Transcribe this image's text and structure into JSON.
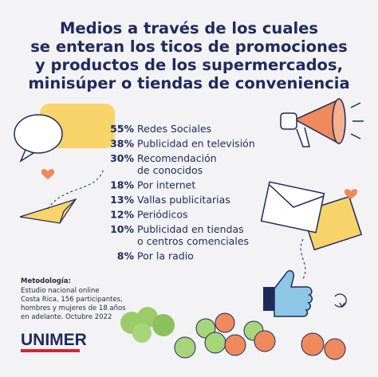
{
  "title_lines": [
    "Medios a través de los cuales",
    "se enteran los ticos de promociones",
    "y productos de los supermercados,",
    "minisúper o tiendas de conveniencia"
  ],
  "items": [
    {
      "percent": "55%",
      "lines": [
        "Redes Sociales"
      ]
    },
    {
      "percent": "38%",
      "lines": [
        "Publicidad en televisión"
      ]
    },
    {
      "percent": "30%",
      "lines": [
        "Recomendación",
        "de conocidos"
      ]
    },
    {
      "percent": "18%",
      "lines": [
        "Por internet"
      ]
    },
    {
      "percent": "13%",
      "lines": [
        "Vallas publicitarias"
      ]
    },
    {
      "percent": "12%",
      "lines": [
        "Periódicos"
      ]
    },
    {
      "percent": "10%",
      "lines": [
        "Publicidad en tiendas",
        "o centros comenciales"
      ]
    },
    {
      "percent": "8%",
      "lines": [
        "Por la radio"
      ]
    }
  ],
  "methodology": {
    "heading": "Metodología:",
    "lines": [
      "Estudio nacional online",
      "Costa Rica, 156 participantes,",
      "hombres y mujeres de 18 años",
      "en adelante. Octubre 2022"
    ]
  },
  "logo": "UNIMER"
}
